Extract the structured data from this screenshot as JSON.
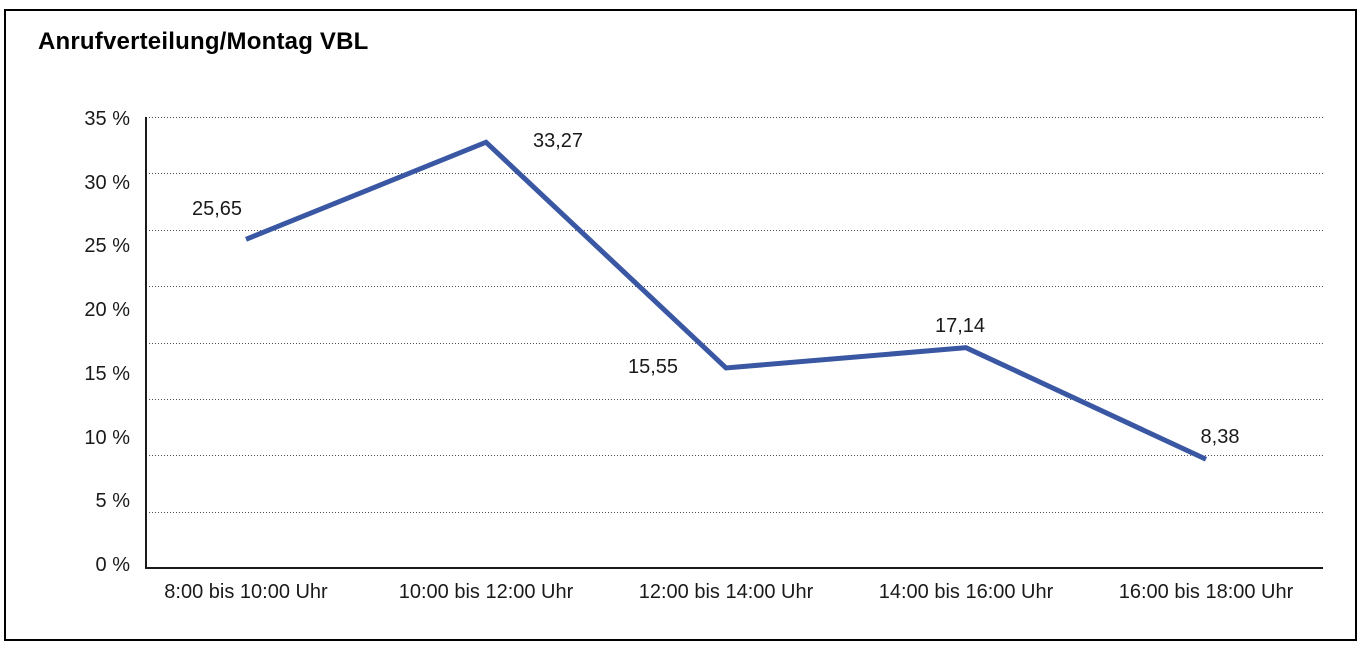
{
  "chart_data": {
    "type": "line",
    "title": "Anrufverteilung/Montag VBL",
    "categories": [
      "8:00 bis 10:00 Uhr",
      "10:00 bis 12:00 Uhr",
      "12:00 bis 14:00 Uhr",
      "14:00 bis 16:00 Uhr",
      "16:00 bis 18:00 Uhr"
    ],
    "series": [
      {
        "name": "Anrufverteilung",
        "values": [
          25.65,
          33.27,
          15.55,
          17.14,
          8.38
        ],
        "value_labels": [
          "25,65",
          "33,27",
          "15,55",
          "17,14",
          "8,38"
        ],
        "color": "#3a57a3"
      }
    ],
    "y_ticks": [
      "35 %",
      "30 %",
      "25 %",
      "20 %",
      "15 %",
      "10 %",
      "5 %",
      "0 %"
    ],
    "ylim": [
      0,
      35
    ],
    "xlabel": "",
    "ylabel": "",
    "grid": "horizontal-dotted",
    "gridline_count": 8,
    "legend": "none",
    "colors": {
      "background": "#ffffff",
      "border": "#000000",
      "axis": "#1a1a1a",
      "text": "#1a1a1a",
      "line": "#3a57a3"
    }
  }
}
